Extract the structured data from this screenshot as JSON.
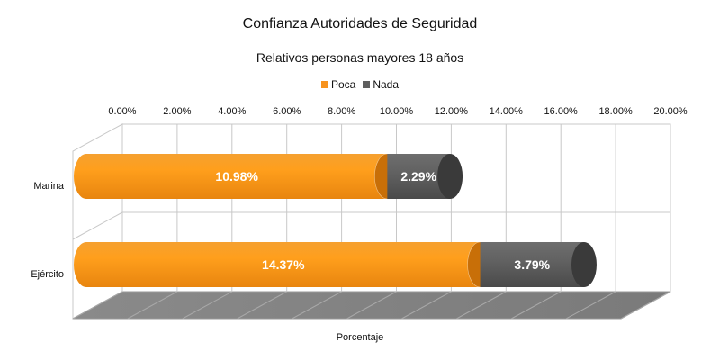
{
  "chart_data": {
    "type": "bar",
    "orientation": "horizontal",
    "stacked": true,
    "style": "3d-cylinder",
    "title": "Confianza Autoridades de Seguridad",
    "subtitle": "Relativos personas mayores 18 años",
    "xlabel": "Porcentaje",
    "ylabel": "",
    "categories": [
      "Marina",
      "Ejército"
    ],
    "series": [
      {
        "name": "Poca",
        "values": [
          10.98,
          14.37
        ],
        "labels": [
          "10.98%",
          "14.37%"
        ],
        "color": "#f7931e"
      },
      {
        "name": "Nada",
        "values": [
          2.29,
          3.79
        ],
        "labels": [
          "2.29%",
          "3.79%"
        ],
        "color": "#5f5f5f"
      }
    ],
    "xlim": [
      0,
      20
    ],
    "xticks": [
      "0.00%",
      "2.00%",
      "4.00%",
      "6.00%",
      "8.00%",
      "10.00%",
      "12.00%",
      "14.00%",
      "16.00%",
      "18.00%",
      "20.00%"
    ],
    "grid": true,
    "legend": "top-center",
    "axis_position": "top"
  }
}
